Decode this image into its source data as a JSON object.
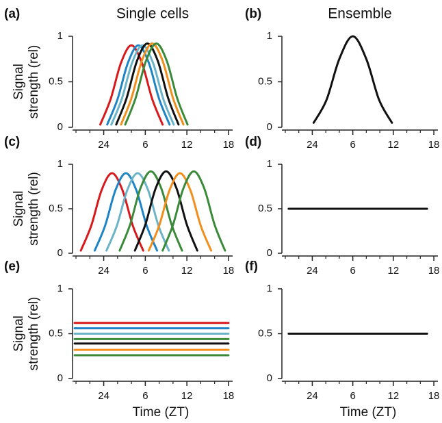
{
  "chart_data": [
    {
      "type": "line",
      "panel": "(a)",
      "title": "Single cells",
      "ylabel": [
        "Signal",
        "strength (rel)"
      ],
      "xlim": [
        -4.5,
        18.6
      ],
      "ylim": [
        0,
        1
      ],
      "xticks": [
        {
          "value": 0,
          "label": "24"
        },
        6,
        12,
        18
      ],
      "xminorticks": [
        -4,
        -2,
        2,
        4,
        8,
        10,
        14,
        16
      ],
      "yticks": [
        0,
        0.5,
        1
      ],
      "series": [
        {
          "color": "#d7191c",
          "x": [
            -0.5,
            1,
            2.5,
            4,
            5.5,
            7,
            8.5
          ],
          "values": [
            0.03,
            0.31,
            0.71,
            0.9,
            0.71,
            0.31,
            0.03
          ]
        },
        {
          "color": "#1f84c6",
          "x": [
            0.5,
            2,
            3.5,
            5,
            6.5,
            8,
            9.5
          ],
          "values": [
            0.03,
            0.31,
            0.71,
            0.9,
            0.71,
            0.31,
            0.03
          ]
        },
        {
          "color": "#6bb3c7",
          "x": [
            1.1,
            2.6,
            4.1,
            5.6,
            7.1,
            8.6,
            10.1
          ],
          "values": [
            0.03,
            0.31,
            0.71,
            0.9,
            0.71,
            0.31,
            0.03
          ]
        },
        {
          "color": "#111111",
          "x": [
            1.8,
            3.3,
            4.8,
            6.3,
            7.8,
            9.3,
            10.8
          ],
          "values": [
            0.03,
            0.32,
            0.73,
            0.92,
            0.73,
            0.32,
            0.03
          ]
        },
        {
          "color": "#f28e1c",
          "x": [
            2.5,
            4,
            5.5,
            7,
            8.5,
            10,
            11.5
          ],
          "values": [
            0.03,
            0.32,
            0.73,
            0.92,
            0.73,
            0.32,
            0.03
          ]
        },
        {
          "color": "#3a8a3a",
          "x": [
            3.1,
            4.6,
            6.1,
            7.6,
            9.1,
            10.6,
            12.1
          ],
          "values": [
            0.03,
            0.32,
            0.73,
            0.92,
            0.73,
            0.32,
            0.03
          ]
        }
      ]
    },
    {
      "type": "line",
      "panel": "(b)",
      "title": "Ensemble",
      "xlim": [
        -4.5,
        18.6
      ],
      "ylim": [
        0,
        1
      ],
      "xticks": [
        {
          "value": 0,
          "label": "24"
        },
        6,
        12,
        18
      ],
      "xminorticks": [
        -4,
        -2,
        2,
        4,
        8,
        10,
        14,
        16
      ],
      "yticks": [
        0,
        0.5,
        1
      ],
      "series": [
        {
          "color": "#111111",
          "x": [
            0.2,
            2.1,
            4,
            6,
            8,
            9.9,
            11.8
          ],
          "values": [
            0.05,
            0.3,
            0.75,
            1,
            0.75,
            0.3,
            0.05
          ]
        }
      ]
    },
    {
      "type": "line",
      "panel": "(c)",
      "ylabel": [
        "Signal",
        "strength (rel)"
      ],
      "xlim": [
        -4.5,
        18.6
      ],
      "ylim": [
        0,
        1
      ],
      "xticks": [
        {
          "value": 0,
          "label": "24"
        },
        6,
        12,
        18
      ],
      "xminorticks": [
        -4,
        -2,
        2,
        4,
        8,
        10,
        14,
        16
      ],
      "yticks": [
        0,
        0.5,
        1
      ],
      "series": [
        {
          "color": "#d7191c",
          "x": [
            -3.3,
            -1.8,
            -0.3,
            1.2,
            2.7,
            4.2,
            5.7
          ],
          "values": [
            0.03,
            0.31,
            0.71,
            0.9,
            0.71,
            0.31,
            0.03
          ]
        },
        {
          "color": "#1f84c6",
          "x": [
            -1.3,
            0.2,
            1.7,
            3.2,
            4.7,
            6.2,
            7.7
          ],
          "values": [
            0.03,
            0.31,
            0.71,
            0.9,
            0.71,
            0.31,
            0.03
          ]
        },
        {
          "color": "#6bb3c7",
          "x": [
            0.4,
            1.9,
            3.4,
            4.9,
            6.4,
            7.9,
            9.4
          ],
          "values": [
            0.03,
            0.31,
            0.71,
            0.9,
            0.71,
            0.31,
            0.03
          ]
        },
        {
          "color": "#3a8a3a",
          "x": [
            2.3,
            3.8,
            5.3,
            6.8,
            8.3,
            9.8,
            11.3
          ],
          "values": [
            0.03,
            0.32,
            0.73,
            0.92,
            0.73,
            0.32,
            0.03
          ]
        },
        {
          "color": "#111111",
          "x": [
            4.5,
            6,
            7.5,
            9,
            10.5,
            12,
            13.5
          ],
          "values": [
            0.03,
            0.32,
            0.73,
            0.92,
            0.73,
            0.32,
            0.03
          ]
        },
        {
          "color": "#f28e1c",
          "x": [
            6.5,
            8,
            9.5,
            11,
            12.5,
            14,
            15.5
          ],
          "values": [
            0.03,
            0.31,
            0.71,
            0.9,
            0.71,
            0.31,
            0.03
          ]
        },
        {
          "color": "#3a8a3a",
          "x": [
            8.5,
            10,
            11.5,
            13,
            14.5,
            16,
            17.5
          ],
          "values": [
            0.03,
            0.32,
            0.73,
            0.92,
            0.73,
            0.32,
            0.03
          ]
        }
      ]
    },
    {
      "type": "line",
      "panel": "(d)",
      "xlim": [
        -4.5,
        18.6
      ],
      "ylim": [
        0,
        1
      ],
      "xticks": [
        {
          "value": 0,
          "label": "24"
        },
        6,
        12,
        18
      ],
      "xminorticks": [
        -4,
        -2,
        2,
        4,
        8,
        10,
        14,
        16
      ],
      "yticks": [
        0,
        0.5,
        1
      ],
      "series": [
        {
          "color": "#111111",
          "x": [
            -3.5,
            17
          ],
          "values": [
            0.5,
            0.5
          ]
        }
      ]
    },
    {
      "type": "line",
      "panel": "(e)",
      "ylabel": [
        "Signal",
        "strength (rel)"
      ],
      "xlabel": "Time (ZT)",
      "xlim": [
        -4.5,
        18.6
      ],
      "ylim": [
        0,
        1
      ],
      "xticks": [
        {
          "value": 0,
          "label": "24"
        },
        6,
        12,
        18
      ],
      "xminorticks": [
        -4,
        -2,
        2,
        4,
        8,
        10,
        14,
        16
      ],
      "yticks": [
        0,
        0.5,
        1
      ],
      "series": [
        {
          "color": "#d7191c",
          "x": [
            -4.2,
            18
          ],
          "values": [
            0.62,
            0.62
          ]
        },
        {
          "color": "#1f84c6",
          "x": [
            -4.2,
            18
          ],
          "values": [
            0.56,
            0.56
          ]
        },
        {
          "color": "#6bb3c7",
          "x": [
            -4.2,
            18
          ],
          "values": [
            0.5,
            0.5
          ]
        },
        {
          "color": "#3a8a3a",
          "x": [
            -4.2,
            18
          ],
          "values": [
            0.44,
            0.44
          ]
        },
        {
          "color": "#111111",
          "x": [
            -4.2,
            18
          ],
          "values": [
            0.39,
            0.39
          ]
        },
        {
          "color": "#f28e1c",
          "x": [
            -4.2,
            18
          ],
          "values": [
            0.32,
            0.32
          ]
        },
        {
          "color": "#3a8a3a",
          "x": [
            -4.2,
            18
          ],
          "values": [
            0.26,
            0.26
          ]
        }
      ]
    },
    {
      "type": "line",
      "panel": "(f)",
      "xlabel": "Time (ZT)",
      "xlim": [
        -4.5,
        18.6
      ],
      "ylim": [
        0,
        1
      ],
      "xticks": [
        {
          "value": 0,
          "label": "24"
        },
        6,
        12,
        18
      ],
      "xminorticks": [
        -4,
        -2,
        2,
        4,
        8,
        10,
        14,
        16
      ],
      "yticks": [
        0,
        0.5,
        1
      ],
      "series": [
        {
          "color": "#111111",
          "x": [
            -3.5,
            17
          ],
          "values": [
            0.5,
            0.5
          ]
        }
      ]
    }
  ]
}
